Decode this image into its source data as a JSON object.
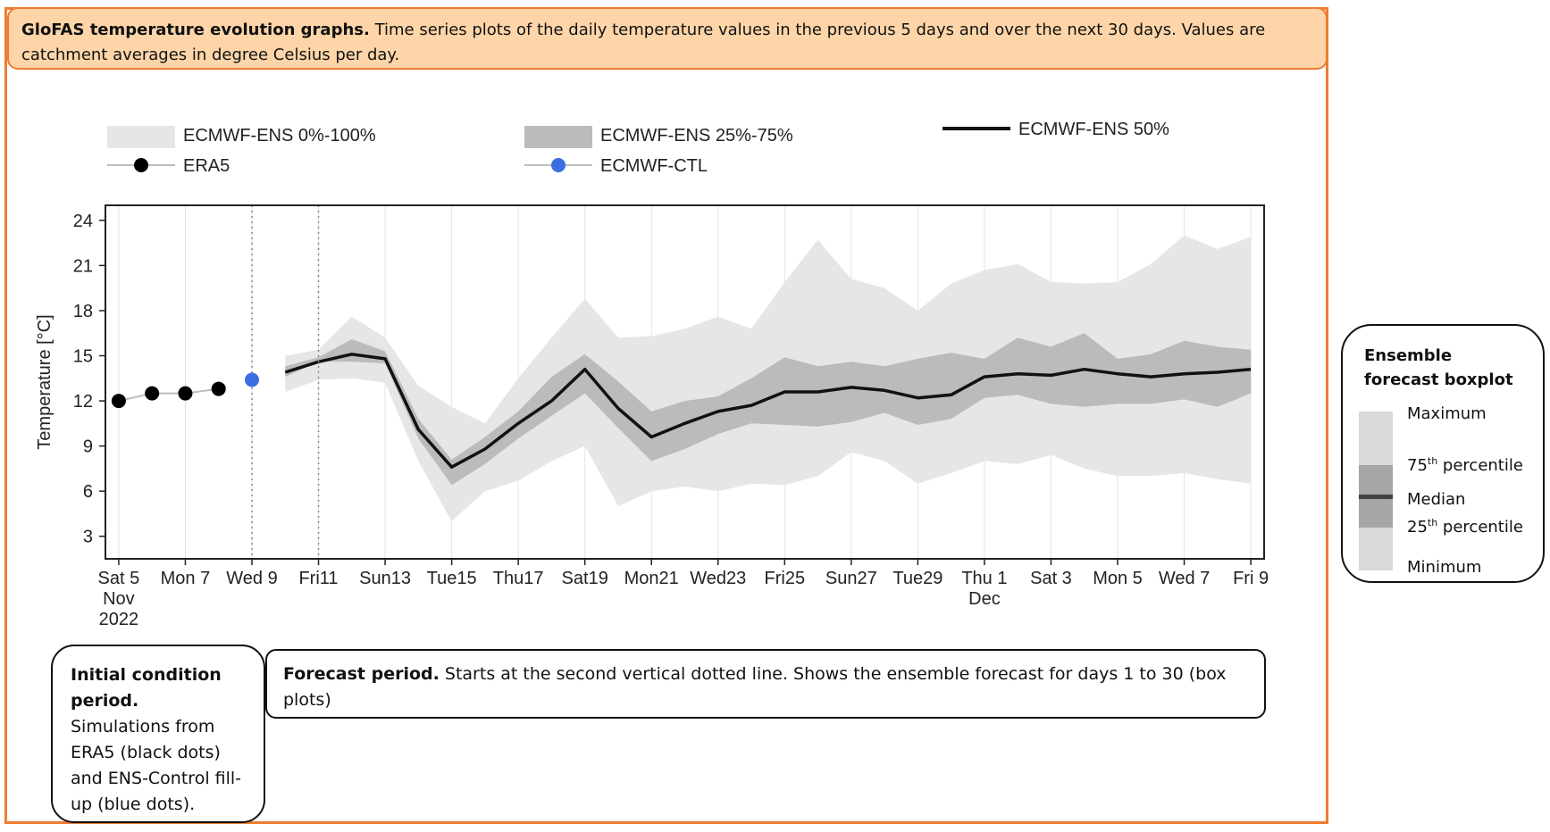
{
  "header": {
    "title": "GloFAS temperature evolution graphs.",
    "text": " Time series plots of the daily temperature values in the previous 5 days and over the next 30 days. Values are catchment averages in degree Celsius per day."
  },
  "initial_period": {
    "title": "Initial condition period.",
    "text": "Simulations from ERA5 (black dots) and ENS-Control fill-up (blue dots)."
  },
  "forecast_period": {
    "title": "Forecast period.",
    "text": " Starts at the second vertical dotted line. Shows the ensemble forecast for days 1 to 30 (box plots)"
  },
  "boxplot_legend": {
    "title": "Ensemble forecast boxplot",
    "maximum": "Maximum",
    "p75_num": "75",
    "p75_sup": "th",
    "p75_word": " percentile",
    "median": "Median",
    "p25_num": "25",
    "p25_sup": "th",
    "p25_word": " percentile",
    "minimum": "Minimum",
    "colors": {
      "outer": "#d9d9d9",
      "inner": "#a6a6a6",
      "median": "#404040"
    }
  },
  "chart_data": {
    "type": "area",
    "ylabel": "Temperature [°C]",
    "ylim": [
      1.5,
      25
    ],
    "yticks": [
      3,
      6,
      9,
      12,
      15,
      18,
      21,
      24
    ],
    "grid": true,
    "legend": {
      "position": "top",
      "items": {
        "full_range": "ECMWF-ENS 0%-100%",
        "iqr": "ECMWF-ENS 25%-75%",
        "median": "ECMWF-ENS 50%",
        "era5": "ERA5",
        "ctl": "ECMWF-CTL"
      }
    },
    "x_start": "2022-11-05",
    "xlim": [
      "2022-11-05",
      "2022-12-09"
    ],
    "x_ticks": [
      {
        "date": "2022-11-05",
        "label": "Sat 5",
        "sub": "Nov",
        "sub2": "2022"
      },
      {
        "date": "2022-11-07",
        "label": "Mon 7"
      },
      {
        "date": "2022-11-09",
        "label": "Wed 9"
      },
      {
        "date": "2022-11-11",
        "label": "Fri11"
      },
      {
        "date": "2022-11-13",
        "label": "Sun13"
      },
      {
        "date": "2022-11-15",
        "label": "Tue15"
      },
      {
        "date": "2022-11-17",
        "label": "Thu17"
      },
      {
        "date": "2022-11-19",
        "label": "Sat19"
      },
      {
        "date": "2022-11-21",
        "label": "Mon21"
      },
      {
        "date": "2022-11-23",
        "label": "Wed23"
      },
      {
        "date": "2022-11-25",
        "label": "Fri25"
      },
      {
        "date": "2022-11-27",
        "label": "Sun27"
      },
      {
        "date": "2022-11-29",
        "label": "Tue29"
      },
      {
        "date": "2022-12-01",
        "label": "Thu 1",
        "sub": "Dec"
      },
      {
        "date": "2022-12-03",
        "label": "Sat 3"
      },
      {
        "date": "2022-12-05",
        "label": "Mon 5"
      },
      {
        "date": "2022-12-07",
        "label": "Wed 7"
      },
      {
        "date": "2022-12-09",
        "label": "Fri 9"
      }
    ],
    "dotted_lines": [
      "2022-11-09",
      "2022-11-11"
    ],
    "era5": {
      "x": [
        "2022-11-05",
        "2022-11-06",
        "2022-11-07",
        "2022-11-08"
      ],
      "y": [
        12.0,
        12.5,
        12.5,
        12.8
      ]
    },
    "ctl": {
      "x": [
        "2022-11-09"
      ],
      "y": [
        13.4
      ]
    },
    "ensemble": {
      "x": [
        "2022-11-10",
        "2022-11-11",
        "2022-11-12",
        "2022-11-13",
        "2022-11-14",
        "2022-11-15",
        "2022-11-16",
        "2022-11-17",
        "2022-11-18",
        "2022-11-19",
        "2022-11-20",
        "2022-11-21",
        "2022-11-22",
        "2022-11-23",
        "2022-11-24",
        "2022-11-25",
        "2022-11-26",
        "2022-11-27",
        "2022-11-28",
        "2022-11-29",
        "2022-11-30",
        "2022-12-01",
        "2022-12-02",
        "2022-12-03",
        "2022-12-04",
        "2022-12-05",
        "2022-12-06",
        "2022-12-07",
        "2022-12-08",
        "2022-12-09"
      ],
      "min": [
        12.6,
        13.4,
        13.5,
        13.2,
        8.0,
        4.0,
        6.0,
        6.7,
        8.0,
        9.0,
        5.0,
        6.0,
        6.3,
        6.0,
        6.5,
        6.4,
        7.0,
        8.6,
        8.0,
        6.5,
        7.2,
        8.0,
        7.8,
        8.4,
        7.5,
        7.0,
        7.0,
        7.2,
        6.8,
        6.5
      ],
      "p25": [
        13.6,
        14.6,
        14.6,
        14.5,
        9.5,
        6.4,
        7.8,
        9.5,
        11.0,
        12.5,
        10.2,
        8.0,
        8.8,
        9.8,
        10.5,
        10.4,
        10.3,
        10.6,
        11.2,
        10.4,
        10.8,
        12.2,
        12.4,
        11.8,
        11.6,
        11.8,
        11.8,
        12.1,
        11.6,
        12.5
      ],
      "median": [
        13.9,
        14.6,
        15.1,
        14.8,
        10.1,
        7.6,
        8.8,
        10.5,
        12.0,
        14.1,
        11.5,
        9.6,
        10.5,
        11.3,
        11.7,
        12.6,
        12.6,
        12.9,
        12.7,
        12.2,
        12.4,
        13.6,
        13.8,
        13.7,
        14.1,
        13.8,
        13.6,
        13.8,
        13.9,
        14.1
      ],
      "p75": [
        14.3,
        14.9,
        16.1,
        15.3,
        10.8,
        8.1,
        9.6,
        11.3,
        13.6,
        15.1,
        13.3,
        11.3,
        12.0,
        12.3,
        13.5,
        14.9,
        14.3,
        14.6,
        14.3,
        14.8,
        15.2,
        14.8,
        16.2,
        15.6,
        16.5,
        14.8,
        15.1,
        16.0,
        15.6,
        15.4
      ],
      "max": [
        15.0,
        15.4,
        17.6,
        16.2,
        13.0,
        11.6,
        10.5,
        13.5,
        16.2,
        18.8,
        16.2,
        16.3,
        16.8,
        17.6,
        16.8,
        19.9,
        22.7,
        20.1,
        19.5,
        18.0,
        19.8,
        20.7,
        21.1,
        19.9,
        19.8,
        19.9,
        21.1,
        23.0,
        22.1,
        22.9
      ]
    }
  }
}
